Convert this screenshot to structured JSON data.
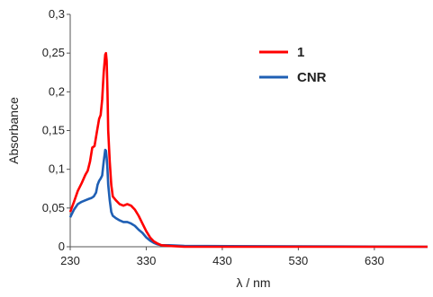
{
  "chart_data": {
    "type": "line",
    "title": "",
    "xlabel": "λ / nm",
    "ylabel": "Absorbance",
    "xlim": [
      230,
      700
    ],
    "ylim": [
      0,
      0.3
    ],
    "x_ticks": [
      230,
      330,
      430,
      530,
      630
    ],
    "x_tick_labels": [
      "230",
      "330",
      "430",
      "530",
      "630"
    ],
    "y_ticks": [
      0,
      0.05,
      0.1,
      0.15,
      0.2,
      0.25,
      0.3
    ],
    "y_tick_labels": [
      "0",
      "0,05",
      "0,1",
      "0,15",
      "0,2",
      "0,25",
      "0,3"
    ],
    "grid": false,
    "legend_position": "top-right",
    "series": [
      {
        "name": "1",
        "color": "#ff0000",
        "points": [
          [
            230,
            0.045
          ],
          [
            235,
            0.058
          ],
          [
            240,
            0.072
          ],
          [
            245,
            0.082
          ],
          [
            250,
            0.093
          ],
          [
            253,
            0.098
          ],
          [
            256,
            0.11
          ],
          [
            259,
            0.128
          ],
          [
            262,
            0.13
          ],
          [
            265,
            0.148
          ],
          [
            268,
            0.165
          ],
          [
            270,
            0.17
          ],
          [
            272,
            0.19
          ],
          [
            274,
            0.225
          ],
          [
            276,
            0.248
          ],
          [
            277,
            0.25
          ],
          [
            278,
            0.24
          ],
          [
            279,
            0.2
          ],
          [
            280,
            0.15
          ],
          [
            282,
            0.11
          ],
          [
            284,
            0.08
          ],
          [
            286,
            0.065
          ],
          [
            290,
            0.06
          ],
          [
            295,
            0.055
          ],
          [
            300,
            0.053
          ],
          [
            305,
            0.055
          ],
          [
            310,
            0.053
          ],
          [
            315,
            0.048
          ],
          [
            320,
            0.04
          ],
          [
            325,
            0.03
          ],
          [
            330,
            0.02
          ],
          [
            335,
            0.012
          ],
          [
            340,
            0.007
          ],
          [
            345,
            0.004
          ],
          [
            350,
            0.002
          ],
          [
            360,
            0.001
          ],
          [
            380,
            0.0
          ],
          [
            700,
            0.0
          ]
        ]
      },
      {
        "name": "CNR",
        "color": "#1f5fb4",
        "points": [
          [
            230,
            0.038
          ],
          [
            235,
            0.048
          ],
          [
            240,
            0.055
          ],
          [
            245,
            0.058
          ],
          [
            250,
            0.06
          ],
          [
            255,
            0.062
          ],
          [
            258,
            0.063
          ],
          [
            261,
            0.065
          ],
          [
            264,
            0.07
          ],
          [
            266,
            0.08
          ],
          [
            268,
            0.085
          ],
          [
            270,
            0.088
          ],
          [
            272,
            0.092
          ],
          [
            274,
            0.11
          ],
          [
            276,
            0.125
          ],
          [
            277,
            0.124
          ],
          [
            278,
            0.115
          ],
          [
            279,
            0.1
          ],
          [
            280,
            0.08
          ],
          [
            282,
            0.06
          ],
          [
            284,
            0.045
          ],
          [
            286,
            0.04
          ],
          [
            290,
            0.037
          ],
          [
            295,
            0.034
          ],
          [
            300,
            0.032
          ],
          [
            305,
            0.032
          ],
          [
            310,
            0.03
          ],
          [
            315,
            0.027
          ],
          [
            320,
            0.022
          ],
          [
            325,
            0.018
          ],
          [
            330,
            0.012
          ],
          [
            335,
            0.008
          ],
          [
            340,
            0.005
          ],
          [
            345,
            0.003
          ],
          [
            350,
            0.002
          ],
          [
            360,
            0.002
          ],
          [
            380,
            0.001
          ],
          [
            700,
            0.0
          ]
        ]
      }
    ]
  }
}
